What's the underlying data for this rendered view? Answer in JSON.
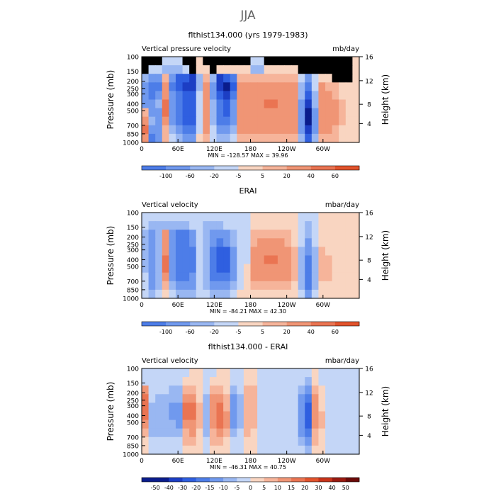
{
  "figure": {
    "title": "JJA"
  },
  "colors": {
    "below": [
      "#0a1c8c",
      "#1c3ec4",
      "#2f5fe0",
      "#4d7de8",
      "#7099ee",
      "#99b7f2",
      "#c4d6f7"
    ],
    "above": [
      "#f9d5c1",
      "#f6b49a",
      "#f09575",
      "#ea7452",
      "#e2532c",
      "#c8331a",
      "#9a1a10",
      "#6c0a08"
    ]
  },
  "chart_data": [
    {
      "type": "heatmap",
      "title": "flthist134.000 (yrs 1979-1983)",
      "left_label": "Vertical pressure velocity",
      "right_label": "mb/day",
      "ylabel": "Pressure (mb)",
      "y2label": "Height (km)",
      "xticks": [
        "0",
        "60E",
        "120E",
        "180",
        "120W",
        "60W"
      ],
      "yticks": [
        "100",
        "150",
        "200",
        "250",
        "300",
        "400",
        "500",
        "700",
        "850",
        "1000"
      ],
      "y2ticks": [
        "16",
        "12",
        "8",
        "4"
      ],
      "stats": "MIN = -128.57   MAX =  39.96",
      "colorbar_labels": [
        "-100",
        "-60",
        "-20",
        "-5",
        "5",
        "20",
        "40",
        "60"
      ],
      "cells": [
        [
          0,
          0,
          0,
          -1,
          -1,
          -1,
          0,
          0,
          1,
          0,
          0,
          0,
          0,
          0,
          0,
          0,
          -1,
          -1,
          0,
          0,
          0,
          0,
          0,
          0,
          0,
          0,
          0,
          0,
          0,
          0,
          0,
          1
        ],
        [
          0,
          -1,
          -1,
          -2,
          -2,
          -2,
          -1,
          0,
          1,
          1,
          0,
          1,
          1,
          1,
          1,
          1,
          -2,
          -2,
          1,
          1,
          1,
          1,
          1,
          0,
          0,
          0,
          0,
          0,
          0,
          0,
          0,
          1
        ],
        [
          -2,
          -3,
          -3,
          2,
          -3,
          -5,
          -5,
          -6,
          -2,
          2,
          -2,
          -6,
          -5,
          -4,
          2,
          2,
          2,
          2,
          2,
          2,
          2,
          2,
          2,
          -1,
          -3,
          -1,
          1,
          1,
          0,
          0,
          0,
          1
        ],
        [
          -3,
          -4,
          -4,
          3,
          -4,
          -5,
          -6,
          -6,
          -2,
          3,
          -3,
          -6,
          -7,
          -5,
          3,
          3,
          3,
          3,
          3,
          3,
          3,
          3,
          3,
          -2,
          -4,
          -1,
          3,
          2,
          2,
          1,
          1,
          1
        ],
        [
          -3,
          -4,
          -3,
          3,
          -3,
          -4,
          -5,
          -5,
          -1,
          3,
          -3,
          -5,
          -6,
          -4,
          3,
          3,
          3,
          3,
          3,
          3,
          3,
          3,
          3,
          -2,
          -5,
          -2,
          3,
          3,
          2,
          1,
          1,
          1
        ],
        [
          -3,
          -3,
          -2,
          4,
          -3,
          -4,
          -5,
          -5,
          -1,
          3,
          -2,
          -4,
          -5,
          -3,
          3,
          3,
          3,
          3,
          4,
          4,
          3,
          3,
          3,
          -3,
          -6,
          -2,
          3,
          3,
          3,
          2,
          1,
          1
        ],
        [
          2,
          -3,
          -3,
          4,
          -3,
          -4,
          -5,
          -5,
          -1,
          3,
          -2,
          -4,
          -5,
          -3,
          3,
          3,
          3,
          3,
          3,
          3,
          3,
          3,
          3,
          -3,
          -7,
          -3,
          3,
          3,
          3,
          2,
          1,
          1
        ],
        [
          3,
          -2,
          -3,
          3,
          -3,
          -4,
          -5,
          -5,
          -1,
          3,
          -2,
          -4,
          -4,
          -3,
          3,
          3,
          3,
          3,
          3,
          3,
          3,
          3,
          3,
          -3,
          -7,
          -3,
          3,
          3,
          3,
          2,
          1,
          1
        ],
        [
          4,
          -3,
          -3,
          2,
          -2,
          -3,
          -4,
          -4,
          -1,
          3,
          -1,
          -3,
          -3,
          -2,
          3,
          3,
          3,
          3,
          3,
          3,
          3,
          3,
          3,
          -3,
          -6,
          -3,
          3,
          3,
          2,
          1,
          1,
          1
        ],
        [
          3,
          -4,
          -3,
          2,
          -1,
          -2,
          -3,
          -3,
          1,
          2,
          -1,
          -2,
          -2,
          -1,
          2,
          2,
          2,
          2,
          2,
          2,
          2,
          2,
          2,
          -2,
          -5,
          -2,
          2,
          2,
          2,
          1,
          1,
          1
        ]
      ]
    },
    {
      "type": "heatmap",
      "title": "ERAI",
      "left_label": "Vertical velocity",
      "right_label": "mbar/day",
      "ylabel": "Pressure (mb)",
      "y2label": "Height (km)",
      "xticks": [
        "0",
        "60E",
        "120E",
        "180",
        "120W",
        "60W"
      ],
      "yticks": [
        "100",
        "150",
        "200",
        "250",
        "300",
        "400",
        "500",
        "700",
        "850",
        "1000"
      ],
      "y2ticks": [
        "16",
        "12",
        "8",
        "4"
      ],
      "stats": "MIN = -84.21   MAX =  42.30",
      "colorbar_labels": [
        "-100",
        "-60",
        "-20",
        "-5",
        "5",
        "20",
        "40",
        "60"
      ],
      "cells": [
        [
          -1,
          -1,
          -1,
          -1,
          -1,
          -1,
          -1,
          -1,
          -1,
          -1,
          -1,
          -1,
          -1,
          -1,
          -1,
          -1,
          1,
          1,
          1,
          1,
          1,
          1,
          1,
          -1,
          -1,
          -1,
          1,
          1,
          1,
          1,
          1,
          1
        ],
        [
          -1,
          -2,
          -2,
          -2,
          -2,
          -2,
          -2,
          -1,
          -1,
          -2,
          -2,
          -2,
          -1,
          -1,
          -1,
          -1,
          1,
          1,
          1,
          1,
          1,
          1,
          1,
          -1,
          -2,
          -1,
          1,
          1,
          1,
          1,
          1,
          1
        ],
        [
          -2,
          -3,
          -2,
          3,
          -3,
          -4,
          -4,
          -3,
          -1,
          -2,
          -3,
          -3,
          -3,
          -2,
          -1,
          -1,
          2,
          2,
          2,
          2,
          2,
          2,
          1,
          -1,
          -2,
          -1,
          1,
          1,
          1,
          1,
          1,
          1
        ],
        [
          -2,
          -3,
          -2,
          3,
          -3,
          -4,
          -4,
          -3,
          -1,
          -2,
          -3,
          -4,
          -3,
          -2,
          -1,
          -1,
          2,
          3,
          3,
          3,
          3,
          2,
          1,
          -1,
          -3,
          -1,
          1,
          1,
          1,
          1,
          1,
          1
        ],
        [
          -2,
          -3,
          -2,
          3,
          -3,
          -4,
          -4,
          -4,
          -1,
          -2,
          -4,
          -5,
          -5,
          -3,
          -1,
          -1,
          3,
          3,
          3,
          3,
          3,
          3,
          2,
          -2,
          -3,
          -2,
          2,
          1,
          1,
          1,
          1,
          1
        ],
        [
          -2,
          -3,
          -2,
          4,
          -3,
          -4,
          -4,
          -4,
          -1,
          -2,
          -4,
          -5,
          -5,
          -3,
          -1,
          -1,
          3,
          3,
          4,
          4,
          3,
          3,
          2,
          -2,
          -4,
          -2,
          2,
          2,
          1,
          1,
          1,
          1
        ],
        [
          -2,
          -3,
          -2,
          4,
          -3,
          -4,
          -4,
          -4,
          -1,
          -2,
          -4,
          -5,
          -5,
          -3,
          -1,
          1,
          3,
          3,
          3,
          3,
          3,
          3,
          2,
          -2,
          -4,
          -2,
          2,
          2,
          1,
          1,
          1,
          1
        ],
        [
          -1,
          -3,
          -2,
          3,
          -3,
          -4,
          -4,
          -3,
          -1,
          -2,
          -4,
          -4,
          -4,
          -3,
          -1,
          1,
          3,
          3,
          3,
          3,
          3,
          3,
          2,
          -2,
          -4,
          -2,
          2,
          2,
          1,
          1,
          1,
          1
        ],
        [
          -1,
          -3,
          -2,
          2,
          -2,
          -3,
          -3,
          -3,
          -1,
          -2,
          -3,
          -3,
          -3,
          -2,
          -1,
          1,
          2,
          2,
          2,
          2,
          2,
          2,
          1,
          -2,
          -4,
          -2,
          1,
          1,
          1,
          1,
          1,
          1
        ],
        [
          -1,
          -2,
          -1,
          1,
          -1,
          -2,
          -2,
          -2,
          -1,
          -1,
          -2,
          -2,
          -2,
          -1,
          1,
          1,
          1,
          1,
          1,
          1,
          1,
          1,
          1,
          -1,
          -3,
          -1,
          1,
          1,
          1,
          1,
          1,
          1
        ]
      ]
    },
    {
      "type": "heatmap",
      "title": "flthist134.000 - ERAI",
      "left_label": "Vertical velocity",
      "right_label": "mbar/day",
      "ylabel": "Pressure (mb)",
      "y2label": "Height (km)",
      "xticks": [
        "0",
        "60E",
        "120E",
        "180",
        "120W",
        "60W"
      ],
      "yticks": [
        "100",
        "150",
        "200",
        "250",
        "300",
        "400",
        "500",
        "700",
        "850",
        "1000"
      ],
      "y2ticks": [
        "16",
        "12",
        "8",
        "4"
      ],
      "stats": "MIN = -46.31   MAX =  40.75",
      "colorbar_labels": [
        "-50",
        "-40",
        "-30",
        "-20",
        "-15",
        "-10",
        "-5",
        "0",
        "5",
        "10",
        "15",
        "20",
        "30",
        "40",
        "50"
      ],
      "cells": [
        [
          -1,
          -1,
          -1,
          -1,
          -1,
          -1,
          -1,
          1,
          1,
          -1,
          -1,
          1,
          1,
          -1,
          -1,
          1,
          1,
          -1,
          -1,
          -1,
          -1,
          -1,
          -1,
          -1,
          -1,
          1,
          -1,
          -1,
          -1,
          -1,
          -1,
          -1
        ],
        [
          -1,
          -1,
          -1,
          -1,
          -1,
          -1,
          1,
          1,
          1,
          -1,
          1,
          1,
          1,
          -1,
          -1,
          1,
          1,
          -1,
          -1,
          -1,
          -1,
          -1,
          -1,
          -1,
          -2,
          1,
          -1,
          -1,
          -1,
          -1,
          -1,
          -1
        ],
        [
          3,
          -1,
          -1,
          -1,
          -2,
          -2,
          2,
          2,
          1,
          -1,
          2,
          2,
          1,
          -2,
          -1,
          2,
          2,
          -1,
          -1,
          -1,
          -1,
          -1,
          -1,
          -2,
          -3,
          2,
          1,
          -1,
          -1,
          -1,
          -1,
          -1
        ],
        [
          4,
          -1,
          -2,
          -2,
          -2,
          -2,
          3,
          3,
          1,
          -2,
          3,
          3,
          2,
          -3,
          -2,
          2,
          2,
          -1,
          -1,
          -1,
          -1,
          -1,
          -1,
          -3,
          -4,
          3,
          1,
          -1,
          -1,
          -1,
          -1,
          -1
        ],
        [
          4,
          -2,
          -2,
          -2,
          -3,
          -3,
          4,
          4,
          2,
          -2,
          3,
          4,
          2,
          -3,
          -2,
          2,
          2,
          -1,
          -1,
          -1,
          -1,
          -1,
          -1,
          -3,
          -5,
          3,
          1,
          -1,
          -1,
          -1,
          -1,
          -1
        ],
        [
          4,
          -2,
          -2,
          -2,
          -3,
          -3,
          4,
          4,
          2,
          -2,
          3,
          4,
          3,
          -3,
          -2,
          2,
          2,
          -1,
          -1,
          -1,
          -1,
          -1,
          -1,
          -3,
          -5,
          3,
          2,
          -1,
          -1,
          -1,
          -1,
          -1
        ],
        [
          3,
          -2,
          -2,
          -2,
          -2,
          -3,
          3,
          3,
          2,
          -2,
          3,
          4,
          3,
          -3,
          -2,
          2,
          2,
          -1,
          -1,
          -1,
          -1,
          -1,
          -1,
          -3,
          -5,
          3,
          2,
          -1,
          -1,
          -1,
          -1,
          -1
        ],
        [
          2,
          -2,
          -2,
          -2,
          -2,
          -2,
          2,
          3,
          1,
          -2,
          2,
          3,
          2,
          -2,
          -1,
          2,
          1,
          -1,
          -1,
          -1,
          -1,
          -1,
          -1,
          -3,
          -4,
          2,
          1,
          -1,
          -1,
          -1,
          -1,
          -1
        ],
        [
          1,
          -1,
          -1,
          -1,
          -1,
          -1,
          2,
          2,
          1,
          -1,
          2,
          2,
          1,
          -1,
          -1,
          1,
          1,
          -1,
          -1,
          -1,
          -1,
          -1,
          -1,
          -2,
          -3,
          2,
          1,
          -1,
          -1,
          -1,
          -1,
          -1
        ],
        [
          1,
          -1,
          -1,
          -1,
          -1,
          -1,
          1,
          1,
          1,
          -1,
          1,
          1,
          1,
          -1,
          -1,
          1,
          1,
          -1,
          -1,
          -1,
          -1,
          -1,
          -1,
          -1,
          -2,
          1,
          1,
          -1,
          -1,
          -1,
          -1,
          -1
        ]
      ]
    }
  ]
}
